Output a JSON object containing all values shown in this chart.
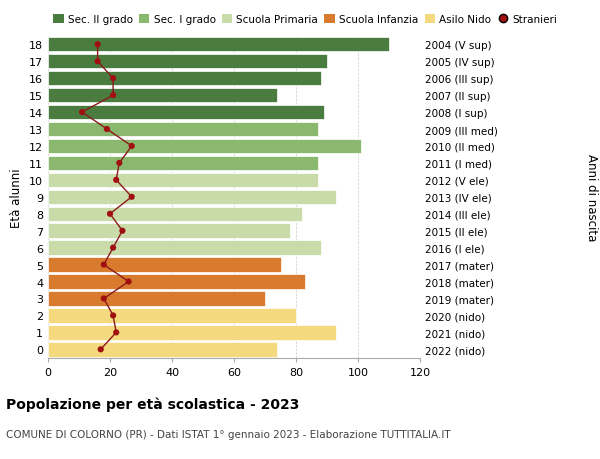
{
  "ages": [
    0,
    1,
    2,
    3,
    4,
    5,
    6,
    7,
    8,
    9,
    10,
    11,
    12,
    13,
    14,
    15,
    16,
    17,
    18
  ],
  "right_labels": [
    "2022 (nido)",
    "2021 (nido)",
    "2020 (nido)",
    "2019 (mater)",
    "2018 (mater)",
    "2017 (mater)",
    "2016 (I ele)",
    "2015 (II ele)",
    "2014 (III ele)",
    "2013 (IV ele)",
    "2012 (V ele)",
    "2011 (I med)",
    "2010 (II med)",
    "2009 (III med)",
    "2008 (I sup)",
    "2007 (II sup)",
    "2006 (III sup)",
    "2005 (IV sup)",
    "2004 (V sup)"
  ],
  "bar_values": [
    74,
    93,
    80,
    70,
    83,
    75,
    88,
    78,
    82,
    93,
    87,
    87,
    101,
    87,
    89,
    74,
    88,
    90,
    110
  ],
  "bar_colors": [
    "#f5d97e",
    "#f5d97e",
    "#f5d97e",
    "#d97b2e",
    "#d97b2e",
    "#d97b2e",
    "#c8dba8",
    "#c8dba8",
    "#c8dba8",
    "#c8dba8",
    "#c8dba8",
    "#8ab86e",
    "#8ab86e",
    "#8ab86e",
    "#4a7c3f",
    "#4a7c3f",
    "#4a7c3f",
    "#4a7c3f",
    "#4a7c3f"
  ],
  "stranieri_values": [
    17,
    22,
    21,
    18,
    26,
    18,
    21,
    24,
    20,
    27,
    22,
    23,
    27,
    19,
    11,
    21,
    21,
    16,
    16
  ],
  "legend_labels": [
    "Sec. II grado",
    "Sec. I grado",
    "Scuola Primaria",
    "Scuola Infanzia",
    "Asilo Nido",
    "Stranieri"
  ],
  "legend_colors": [
    "#4a7c3f",
    "#8ab86e",
    "#c8dba8",
    "#d97b2e",
    "#f5d97e",
    "#a01010"
  ],
  "ylabel_label": "Età alunni",
  "right_ylabel": "Anni di nascita",
  "title": "Popolazione per età scolastica - 2023",
  "subtitle": "COMUNE DI COLORNO (PR) - Dati ISTAT 1° gennaio 2023 - Elaborazione TUTTITALIA.IT",
  "xlim": [
    0,
    120
  ],
  "xticks": [
    0,
    20,
    40,
    60,
    80,
    100,
    120
  ],
  "background_color": "#ffffff",
  "grid_color": "#cccccc",
  "bar_edge_color": "#ffffff",
  "stranieri_color": "#a01010",
  "stranieri_line_color": "#8b1a1a"
}
